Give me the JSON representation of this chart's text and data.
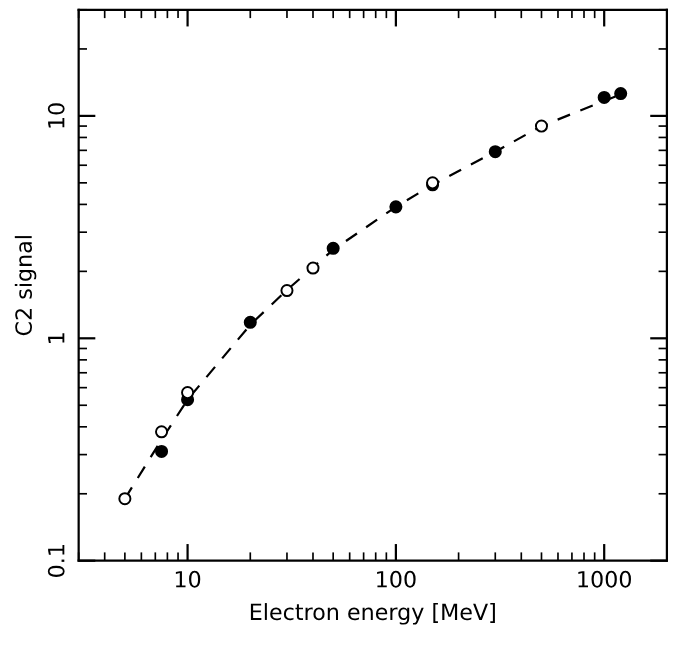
{
  "chart_data": {
    "type": "scatter",
    "xlabel": "Electron energy [MeV]",
    "ylabel": "C2 signal",
    "log": "xy",
    "xlim": [
      3,
      2000
    ],
    "ylim": [
      0.1,
      30
    ],
    "xticks": [
      10,
      100,
      1000
    ],
    "yticks": [
      0.1,
      1,
      10
    ],
    "grid": false,
    "series": [
      {
        "type": "line",
        "marker": "none",
        "line_style": "dashed",
        "color": "#000000",
        "x": [
          5,
          7.5,
          10,
          20,
          30,
          50,
          100,
          150,
          300,
          500,
          1200
        ],
        "values": [
          0.19,
          0.35,
          0.53,
          1.15,
          1.65,
          2.5,
          3.9,
          4.9,
          6.9,
          9.0,
          12.5
        ]
      },
      {
        "marker": "circle",
        "color": "#000000",
        "x": [
          7.5,
          10,
          20,
          50,
          100,
          150,
          300,
          1000,
          1200
        ],
        "values": [
          0.31,
          0.53,
          1.18,
          2.54,
          3.9,
          4.9,
          6.9,
          12.1,
          12.6
        ]
      },
      {
        "marker": "circle",
        "color": "#ffffff",
        "x": [
          5,
          7.5,
          10,
          30,
          40,
          150,
          500
        ],
        "values": [
          0.19,
          0.38,
          0.57,
          1.64,
          2.07,
          5.0,
          9.0
        ]
      }
    ]
  }
}
